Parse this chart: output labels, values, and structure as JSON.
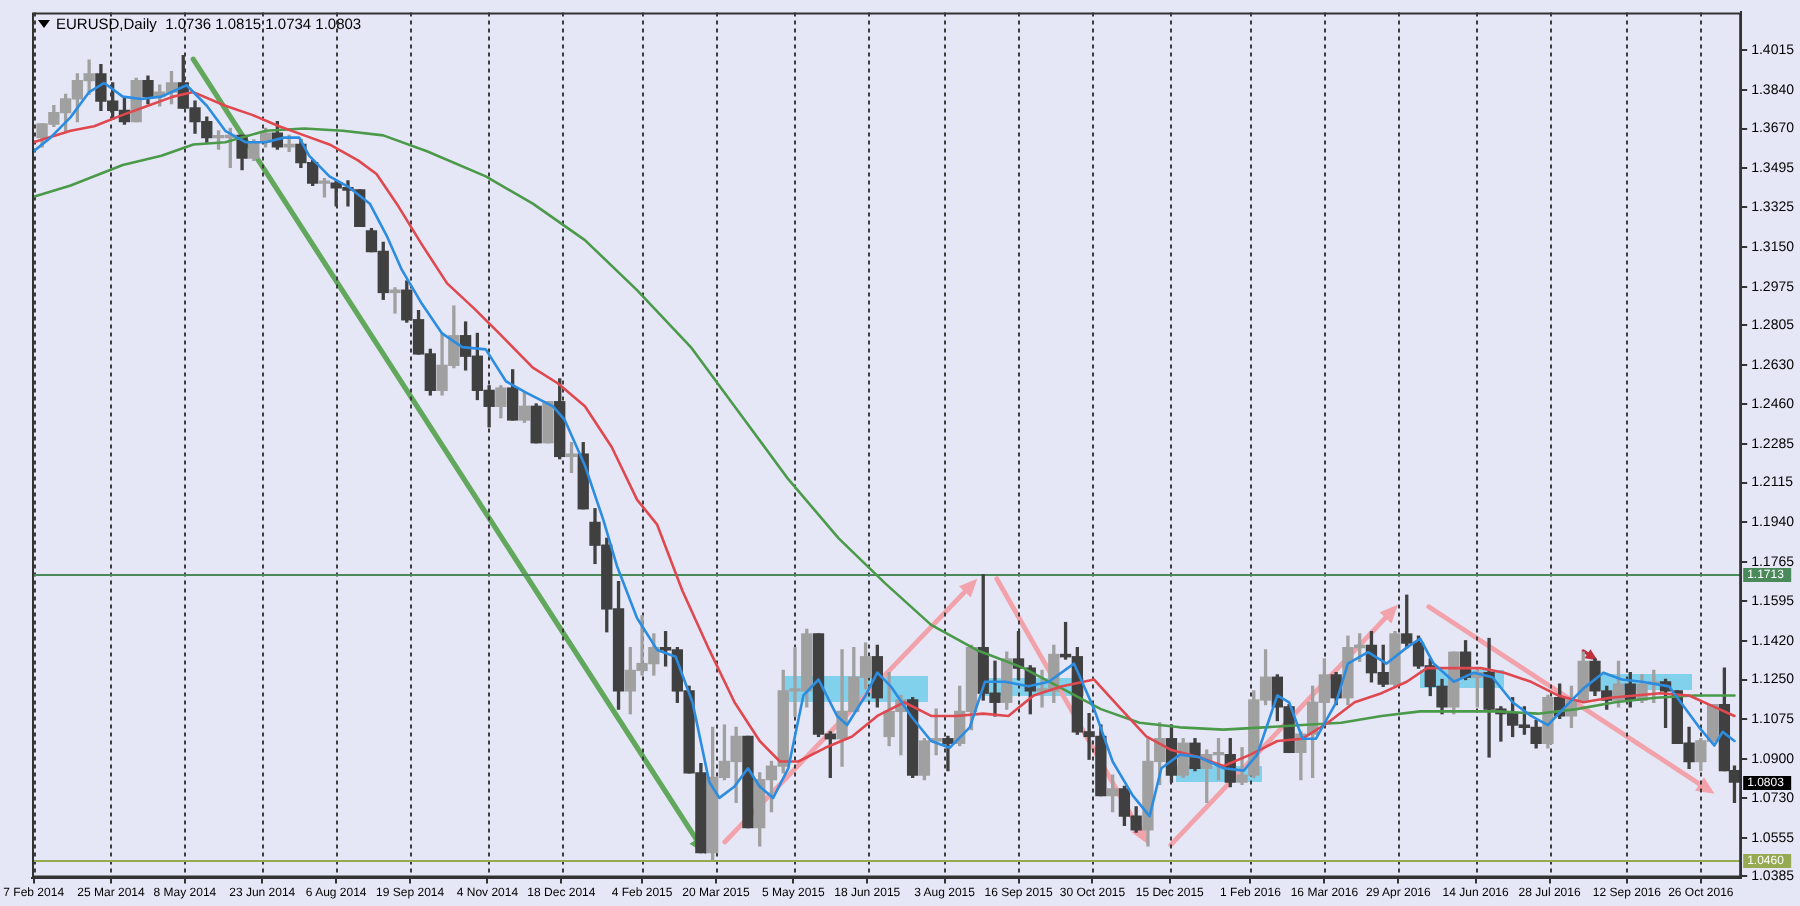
{
  "chart_data": {
    "type": "candlestick",
    "title": "EURUSD,Daily  1.0736 1.0815 1.0734 1.0803",
    "x": [
      "2014-02-12",
      "2014-02-19",
      "2014-02-26",
      "2014-03-05",
      "2014-03-12",
      "2014-03-19",
      "2014-03-26",
      "2014-04-02",
      "2014-04-09",
      "2014-04-16",
      "2014-04-23",
      "2014-04-30",
      "2014-05-07",
      "2014-05-14",
      "2014-05-21",
      "2014-05-28",
      "2014-06-04",
      "2014-06-11",
      "2014-06-18",
      "2014-06-25",
      "2014-07-02",
      "2014-07-09",
      "2014-07-16",
      "2014-07-23",
      "2014-07-30",
      "2014-08-06",
      "2014-08-13",
      "2014-08-20",
      "2014-08-27",
      "2014-09-03",
      "2014-09-10",
      "2014-09-17",
      "2014-09-24",
      "2014-10-01",
      "2014-10-08",
      "2014-10-15",
      "2014-10-22",
      "2014-10-29",
      "2014-11-05",
      "2014-11-12",
      "2014-11-19",
      "2014-11-26",
      "2014-12-03",
      "2014-12-10",
      "2014-12-17",
      "2014-12-24",
      "2014-12-31",
      "2015-01-07",
      "2015-01-14",
      "2015-01-21",
      "2015-01-28",
      "2015-02-04",
      "2015-02-11",
      "2015-02-18",
      "2015-02-25",
      "2015-03-04",
      "2015-03-11",
      "2015-03-18",
      "2015-03-25",
      "2015-04-01",
      "2015-04-08",
      "2015-04-15",
      "2015-04-22",
      "2015-04-29",
      "2015-05-06",
      "2015-05-13",
      "2015-05-20",
      "2015-05-27",
      "2015-06-03",
      "2015-06-10",
      "2015-06-17",
      "2015-06-24",
      "2015-07-01",
      "2015-07-08",
      "2015-07-15",
      "2015-07-22",
      "2015-07-29",
      "2015-08-05",
      "2015-08-12",
      "2015-08-19",
      "2015-08-26",
      "2015-09-02",
      "2015-09-09",
      "2015-09-16",
      "2015-09-23",
      "2015-09-30",
      "2015-10-07",
      "2015-10-14",
      "2015-10-21",
      "2015-10-28",
      "2015-11-04",
      "2015-11-11",
      "2015-11-18",
      "2015-11-25",
      "2015-12-02",
      "2015-12-09",
      "2015-12-16",
      "2015-12-23",
      "2015-12-30",
      "2016-01-06",
      "2016-01-13",
      "2016-01-20",
      "2016-01-27",
      "2016-02-03",
      "2016-02-10",
      "2016-02-17",
      "2016-02-24",
      "2016-03-02",
      "2016-03-09",
      "2016-03-16",
      "2016-03-23",
      "2016-03-30",
      "2016-04-06",
      "2016-04-13",
      "2016-04-20",
      "2016-04-27",
      "2016-05-04",
      "2016-05-11",
      "2016-05-18",
      "2016-05-25",
      "2016-06-01",
      "2016-06-08",
      "2016-06-15",
      "2016-06-22",
      "2016-06-29",
      "2016-07-06",
      "2016-07-13",
      "2016-07-20",
      "2016-07-27",
      "2016-08-03",
      "2016-08-10",
      "2016-08-17",
      "2016-08-24",
      "2016-08-31",
      "2016-09-07",
      "2016-09-14",
      "2016-09-21",
      "2016-09-28",
      "2016-10-05",
      "2016-10-12",
      "2016-10-19",
      "2016-10-26",
      "2016-11-02",
      "2016-11-09",
      "2016-11-15"
    ],
    "ohlc": [
      [
        1.363,
        1.369,
        1.359,
        1.369
      ],
      [
        1.369,
        1.377,
        1.368,
        1.374
      ],
      [
        1.374,
        1.382,
        1.366,
        1.38
      ],
      [
        1.38,
        1.391,
        1.37,
        1.388
      ],
      [
        1.388,
        1.397,
        1.382,
        1.391
      ],
      [
        1.391,
        1.395,
        1.375,
        1.379
      ],
      [
        1.379,
        1.387,
        1.371,
        1.375
      ],
      [
        1.375,
        1.381,
        1.369,
        1.37
      ],
      [
        1.37,
        1.389,
        1.37,
        1.388
      ],
      [
        1.388,
        1.39,
        1.378,
        1.381
      ],
      [
        1.381,
        1.386,
        1.377,
        1.383
      ],
      [
        1.383,
        1.392,
        1.378,
        1.387
      ],
      [
        1.387,
        1.399,
        1.376,
        1.376
      ],
      [
        1.376,
        1.379,
        1.365,
        1.37
      ],
      [
        1.37,
        1.372,
        1.361,
        1.363
      ],
      [
        1.363,
        1.366,
        1.358,
        1.363
      ],
      [
        1.363,
        1.367,
        1.35,
        1.364
      ],
      [
        1.364,
        1.364,
        1.349,
        1.354
      ],
      [
        1.354,
        1.362,
        1.353,
        1.361
      ],
      [
        1.361,
        1.367,
        1.359,
        1.365
      ],
      [
        1.365,
        1.37,
        1.358,
        1.359
      ],
      [
        1.359,
        1.364,
        1.357,
        1.36
      ],
      [
        1.36,
        1.362,
        1.35,
        1.352
      ],
      [
        1.352,
        1.353,
        1.342,
        1.343
      ],
      [
        1.343,
        1.345,
        1.337,
        1.343
      ],
      [
        1.343,
        1.344,
        1.333,
        1.341
      ],
      [
        1.341,
        1.344,
        1.333,
        1.34
      ],
      [
        1.34,
        1.34,
        1.324,
        1.324
      ],
      [
        1.322,
        1.323,
        1.313,
        1.313
      ],
      [
        1.313,
        1.317,
        1.292,
        1.295
      ],
      [
        1.295,
        1.297,
        1.286,
        1.296
      ],
      [
        1.296,
        1.3,
        1.282,
        1.283
      ],
      [
        1.283,
        1.287,
        1.268,
        1.268
      ],
      [
        1.268,
        1.27,
        1.25,
        1.252
      ],
      [
        1.252,
        1.277,
        1.25,
        1.263
      ],
      [
        1.263,
        1.289,
        1.262,
        1.276
      ],
      [
        1.276,
        1.282,
        1.261,
        1.267
      ],
      [
        1.267,
        1.277,
        1.248,
        1.252
      ],
      [
        1.252,
        1.254,
        1.236,
        1.245
      ],
      [
        1.245,
        1.254,
        1.24,
        1.253
      ],
      [
        1.253,
        1.261,
        1.239,
        1.239
      ],
      [
        1.239,
        1.251,
        1.238,
        1.245
      ],
      [
        1.245,
        1.246,
        1.229,
        1.229
      ],
      [
        1.229,
        1.247,
        1.229,
        1.247
      ],
      [
        1.247,
        1.257,
        1.222,
        1.223
      ],
      [
        1.223,
        1.229,
        1.216,
        1.224
      ],
      [
        1.224,
        1.229,
        1.2,
        1.2
      ],
      [
        1.194,
        1.2,
        1.176,
        1.184
      ],
      [
        1.184,
        1.187,
        1.146,
        1.156
      ],
      [
        1.156,
        1.168,
        1.112,
        1.12
      ],
      [
        1.12,
        1.139,
        1.11,
        1.129
      ],
      [
        1.129,
        1.153,
        1.127,
        1.132
      ],
      [
        1.132,
        1.145,
        1.127,
        1.139
      ],
      [
        1.139,
        1.146,
        1.131,
        1.138
      ],
      [
        1.138,
        1.139,
        1.115,
        1.12
      ],
      [
        1.12,
        1.122,
        1.084,
        1.084
      ],
      [
        1.084,
        1.088,
        1.049,
        1.049
      ],
      [
        1.049,
        1.104,
        1.046,
        1.082
      ],
      [
        1.082,
        1.105,
        1.081,
        1.089
      ],
      [
        1.089,
        1.104,
        1.071,
        1.1
      ],
      [
        1.1,
        1.1,
        1.06,
        1.06
      ],
      [
        1.06,
        1.084,
        1.052,
        1.081
      ],
      [
        1.081,
        1.089,
        1.067,
        1.087
      ],
      [
        1.087,
        1.129,
        1.084,
        1.12
      ],
      [
        1.12,
        1.139,
        1.109,
        1.12
      ],
      [
        1.12,
        1.147,
        1.113,
        1.145
      ],
      [
        1.145,
        1.145,
        1.1,
        1.101
      ],
      [
        1.101,
        1.102,
        1.082,
        1.099
      ],
      [
        1.099,
        1.138,
        1.087,
        1.111
      ],
      [
        1.111,
        1.139,
        1.111,
        1.126
      ],
      [
        1.126,
        1.141,
        1.121,
        1.135
      ],
      [
        1.135,
        1.14,
        1.113,
        1.117
      ],
      [
        1.1,
        1.128,
        1.096,
        1.111
      ],
      [
        1.111,
        1.118,
        1.092,
        1.116
      ],
      [
        1.116,
        1.117,
        1.082,
        1.083
      ],
      [
        1.083,
        1.099,
        1.081,
        1.098
      ],
      [
        1.098,
        1.112,
        1.092,
        1.099
      ],
      [
        1.099,
        1.1,
        1.085,
        1.097
      ],
      [
        1.097,
        1.122,
        1.096,
        1.111
      ],
      [
        1.111,
        1.14,
        1.103,
        1.139
      ],
      [
        1.139,
        1.171,
        1.116,
        1.119
      ],
      [
        1.119,
        1.133,
        1.109,
        1.115
      ],
      [
        1.115,
        1.137,
        1.112,
        1.134
      ],
      [
        1.134,
        1.146,
        1.125,
        1.13
      ],
      [
        1.13,
        1.131,
        1.11,
        1.12
      ],
      [
        1.12,
        1.129,
        1.113,
        1.12
      ],
      [
        1.12,
        1.14,
        1.115,
        1.136
      ],
      [
        1.136,
        1.15,
        1.134,
        1.135
      ],
      [
        1.135,
        1.139,
        1.101,
        1.102
      ],
      [
        1.102,
        1.11,
        1.09,
        1.1
      ],
      [
        1.1,
        1.105,
        1.074,
        1.074
      ],
      [
        1.074,
        1.083,
        1.067,
        1.077
      ],
      [
        1.077,
        1.078,
        1.061,
        1.065
      ],
      [
        1.065,
        1.069,
        1.058,
        1.059
      ],
      [
        1.059,
        1.099,
        1.052,
        1.089
      ],
      [
        1.089,
        1.106,
        1.079,
        1.099
      ],
      [
        1.099,
        1.105,
        1.08,
        1.083
      ],
      [
        1.083,
        1.099,
        1.082,
        1.097
      ],
      [
        1.097,
        1.099,
        1.085,
        1.086
      ],
      [
        1.086,
        1.094,
        1.071,
        1.092
      ],
      [
        1.092,
        1.099,
        1.081,
        1.092
      ],
      [
        1.092,
        1.099,
        1.078,
        1.08
      ],
      [
        1.08,
        1.095,
        1.079,
        1.083
      ],
      [
        1.083,
        1.12,
        1.082,
        1.116
      ],
      [
        1.116,
        1.138,
        1.114,
        1.126
      ],
      [
        1.126,
        1.127,
        1.107,
        1.113
      ],
      [
        1.113,
        1.114,
        1.093,
        1.093
      ],
      [
        1.093,
        1.102,
        1.081,
        1.101
      ],
      [
        1.101,
        1.122,
        1.082,
        1.115
      ],
      [
        1.115,
        1.134,
        1.105,
        1.127
      ],
      [
        1.127,
        1.128,
        1.114,
        1.117
      ],
      [
        1.117,
        1.144,
        1.114,
        1.139
      ],
      [
        1.139,
        1.145,
        1.133,
        1.14
      ],
      [
        1.14,
        1.146,
        1.124,
        1.128
      ],
      [
        1.128,
        1.14,
        1.122,
        1.123
      ],
      [
        1.123,
        1.146,
        1.122,
        1.145
      ],
      [
        1.145,
        1.162,
        1.139,
        1.141
      ],
      [
        1.141,
        1.144,
        1.13,
        1.131
      ],
      [
        1.131,
        1.134,
        1.118,
        1.122
      ],
      [
        1.122,
        1.125,
        1.11,
        1.113
      ],
      [
        1.113,
        1.137,
        1.11,
        1.137
      ],
      [
        1.137,
        1.142,
        1.125,
        1.126
      ],
      [
        1.126,
        1.13,
        1.113,
        1.128
      ],
      [
        1.128,
        1.143,
        1.091,
        1.112
      ],
      [
        1.112,
        1.113,
        1.098,
        1.11
      ],
      [
        1.11,
        1.117,
        1.1,
        1.105
      ],
      [
        1.105,
        1.113,
        1.101,
        1.104
      ],
      [
        1.104,
        1.107,
        1.095,
        1.097
      ],
      [
        1.097,
        1.118,
        1.095,
        1.117
      ],
      [
        1.117,
        1.123,
        1.108,
        1.109
      ],
      [
        1.109,
        1.122,
        1.104,
        1.116
      ],
      [
        1.116,
        1.137,
        1.116,
        1.133
      ],
      [
        1.133,
        1.134,
        1.118,
        1.12
      ],
      [
        1.12,
        1.122,
        1.112,
        1.116
      ],
      [
        1.116,
        1.133,
        1.113,
        1.123
      ],
      [
        1.123,
        1.128,
        1.113,
        1.116
      ],
      [
        1.116,
        1.127,
        1.115,
        1.123
      ],
      [
        1.123,
        1.129,
        1.115,
        1.124
      ],
      [
        1.124,
        1.125,
        1.104,
        1.12
      ],
      [
        1.12,
        1.12,
        1.097,
        1.097
      ],
      [
        1.097,
        1.104,
        1.086,
        1.089
      ],
      [
        1.089,
        1.099,
        1.085,
        1.098
      ],
      [
        1.098,
        1.114,
        1.097,
        1.114
      ],
      [
        1.114,
        1.13,
        1.085,
        1.085
      ],
      [
        1.085,
        1.087,
        1.071,
        1.08
      ]
    ],
    "colors": [
      "#a0a0a0",
      "#a0a0a0",
      "#a0a0a0",
      "#a0a0a0",
      "#a0a0a0",
      "#404040",
      "#404040",
      "#404040",
      "#a0a0a0",
      "#404040",
      "#a0a0a0",
      "#a0a0a0",
      "#404040",
      "#404040",
      "#404040",
      "#a0a0a0",
      "#a0a0a0",
      "#404040",
      "#a0a0a0",
      "#a0a0a0",
      "#404040",
      "#a0a0a0",
      "#404040",
      "#404040",
      "#a0a0a0",
      "#404040",
      "#404040",
      "#404040",
      "#404040",
      "#404040",
      "#a0a0a0",
      "#404040",
      "#404040",
      "#404040",
      "#a0a0a0",
      "#a0a0a0",
      "#404040",
      "#404040",
      "#404040",
      "#a0a0a0",
      "#404040",
      "#a0a0a0",
      "#404040",
      "#a0a0a0",
      "#404040",
      "#a0a0a0",
      "#404040",
      "#404040",
      "#404040",
      "#404040",
      "#a0a0a0",
      "#a0a0a0",
      "#a0a0a0",
      "#404040",
      "#404040",
      "#404040",
      "#404040",
      "#a0a0a0",
      "#a0a0a0",
      "#a0a0a0",
      "#404040",
      "#a0a0a0",
      "#a0a0a0",
      "#a0a0a0",
      "#a0a0a0",
      "#a0a0a0",
      "#404040",
      "#404040",
      "#a0a0a0",
      "#a0a0a0",
      "#a0a0a0",
      "#404040",
      "#a0a0a0",
      "#a0a0a0",
      "#404040",
      "#a0a0a0",
      "#a0a0a0",
      "#404040",
      "#a0a0a0",
      "#a0a0a0",
      "#404040",
      "#404040",
      "#a0a0a0",
      "#404040",
      "#404040",
      "#a0a0a0",
      "#a0a0a0",
      "#404040",
      "#404040",
      "#404040",
      "#404040",
      "#a0a0a0",
      "#404040",
      "#404040",
      "#a0a0a0",
      "#a0a0a0",
      "#404040",
      "#a0a0a0",
      "#404040",
      "#a0a0a0",
      "#a0a0a0",
      "#404040",
      "#a0a0a0",
      "#a0a0a0",
      "#a0a0a0",
      "#404040",
      "#404040",
      "#a0a0a0",
      "#a0a0a0",
      "#a0a0a0",
      "#404040",
      "#a0a0a0",
      "#a0a0a0",
      "#404040",
      "#404040",
      "#a0a0a0",
      "#404040",
      "#404040",
      "#404040",
      "#404040",
      "#a0a0a0",
      "#404040",
      "#a0a0a0",
      "#404040",
      "#404040",
      "#404040",
      "#404040",
      "#404040",
      "#a0a0a0",
      "#404040",
      "#a0a0a0",
      "#a0a0a0",
      "#404040",
      "#404040",
      "#a0a0a0",
      "#404040",
      "#a0a0a0",
      "#a0a0a0",
      "#404040",
      "#404040",
      "#404040",
      "#a0a0a0",
      "#a0a0a0",
      "#404040",
      "#404040"
    ],
    "series": [
      {
        "type": "line",
        "color": "#2b8ce0",
        "x": [
          "2014-02-07",
          "2014-02-17",
          "2014-03-01",
          "2014-03-12",
          "2014-03-21",
          "2014-04-01",
          "2014-04-12",
          "2014-04-24",
          "2014-05-09",
          "2014-05-21",
          "2014-06-01",
          "2014-06-13",
          "2014-06-25",
          "2014-07-06",
          "2014-07-15",
          "2014-07-21",
          "2014-08-02",
          "2014-08-14",
          "2014-08-26",
          "2014-09-05",
          "2014-09-14",
          "2014-09-26",
          "2014-10-08",
          "2014-10-20",
          "2014-11-03",
          "2014-11-15",
          "2014-11-27",
          "2014-12-13",
          "2014-12-20",
          "2015-01-01",
          "2015-01-12",
          "2015-01-20",
          "2015-02-01",
          "2015-02-13",
          "2015-02-24",
          "2015-03-06",
          "2015-03-16",
          "2015-03-22",
          "2015-03-31",
          "2015-04-08",
          "2015-04-15",
          "2015-04-23",
          "2015-05-02",
          "2015-05-11",
          "2015-05-20",
          "2015-05-31",
          "2015-06-06",
          "2015-06-17",
          "2015-06-24",
          "2015-07-02",
          "2015-07-14",
          "2015-07-26",
          "2015-08-06",
          "2015-08-18",
          "2015-08-27",
          "2015-09-08",
          "2015-09-22",
          "2015-10-04",
          "2015-10-19",
          "2015-10-31",
          "2015-11-11",
          "2015-11-23",
          "2015-12-03",
          "2015-12-10",
          "2015-12-21",
          "2016-01-01",
          "2016-01-16",
          "2016-01-28",
          "2016-02-05",
          "2016-02-17",
          "2016-02-24",
          "2016-03-03",
          "2016-03-11",
          "2016-03-23",
          "2016-03-30",
          "2016-04-11",
          "2016-04-22",
          "2016-05-04",
          "2016-05-12",
          "2016-05-20",
          "2016-06-01",
          "2016-06-13",
          "2016-06-24",
          "2016-07-06",
          "2016-07-17",
          "2016-07-27",
          "2016-08-05",
          "2016-08-17",
          "2016-08-29",
          "2016-09-09",
          "2016-09-21",
          "2016-10-07",
          "2016-10-14",
          "2016-10-25",
          "2016-11-03",
          "2016-11-08",
          "2016-11-15"
        ],
        "values": [
          1.357,
          1.363,
          1.372,
          1.383,
          1.387,
          1.381,
          1.38,
          1.381,
          1.386,
          1.377,
          1.366,
          1.361,
          1.361,
          1.363,
          1.363,
          1.355,
          1.346,
          1.341,
          1.334,
          1.32,
          1.305,
          1.29,
          1.277,
          1.271,
          1.27,
          1.256,
          1.251,
          1.245,
          1.239,
          1.219,
          1.195,
          1.175,
          1.152,
          1.138,
          1.135,
          1.115,
          1.08,
          1.073,
          1.078,
          1.086,
          1.078,
          1.073,
          1.086,
          1.118,
          1.125,
          1.109,
          1.105,
          1.118,
          1.128,
          1.122,
          1.109,
          1.098,
          1.095,
          1.104,
          1.124,
          1.124,
          1.122,
          1.124,
          1.132,
          1.112,
          1.089,
          1.074,
          1.065,
          1.086,
          1.092,
          1.091,
          1.086,
          1.085,
          1.092,
          1.118,
          1.115,
          1.099,
          1.099,
          1.115,
          1.132,
          1.137,
          1.132,
          1.139,
          1.143,
          1.132,
          1.124,
          1.128,
          1.126,
          1.115,
          1.109,
          1.105,
          1.112,
          1.121,
          1.128,
          1.125,
          1.124,
          1.122,
          1.115,
          1.104,
          1.096,
          1.102,
          1.098
        ]
      },
      {
        "type": "line",
        "color": "#e0484f",
        "x": [
          "2014-02-07",
          "2014-03-01",
          "2014-03-15",
          "2014-04-01",
          "2014-04-16",
          "2014-05-01",
          "2014-05-13",
          "2014-06-01",
          "2014-06-17",
          "2014-07-03",
          "2014-07-18",
          "2014-08-02",
          "2014-08-19",
          "2014-08-30",
          "2014-09-11",
          "2014-09-26",
          "2014-10-11",
          "2014-10-27",
          "2014-11-11",
          "2014-12-01",
          "2014-12-16",
          "2015-01-01",
          "2015-01-17",
          "2015-02-01",
          "2015-02-13",
          "2015-02-28",
          "2015-03-16",
          "2015-03-31",
          "2015-04-15",
          "2015-04-27",
          "2015-05-08",
          "2015-05-24",
          "2015-06-09",
          "2015-06-24",
          "2015-07-10",
          "2015-07-26",
          "2015-08-10",
          "2015-08-26",
          "2015-09-10",
          "2015-09-25",
          "2015-10-12",
          "2015-10-31",
          "2015-11-16",
          "2015-12-01",
          "2015-12-16",
          "2016-01-01",
          "2016-01-16",
          "2016-02-01",
          "2016-02-17",
          "2016-03-03",
          "2016-03-18",
          "2016-04-03",
          "2016-04-19",
          "2016-05-04",
          "2016-05-16",
          "2016-06-01",
          "2016-06-17",
          "2016-07-01",
          "2016-07-17",
          "2016-08-02",
          "2016-08-17",
          "2016-09-02",
          "2016-09-17",
          "2016-10-02",
          "2016-10-19",
          "2016-11-03",
          "2016-11-15"
        ],
        "values": [
          1.361,
          1.366,
          1.368,
          1.373,
          1.377,
          1.381,
          1.383,
          1.377,
          1.373,
          1.368,
          1.364,
          1.36,
          1.353,
          1.347,
          1.334,
          1.316,
          1.299,
          1.288,
          1.277,
          1.262,
          1.255,
          1.245,
          1.227,
          1.204,
          1.193,
          1.164,
          1.138,
          1.115,
          1.098,
          1.089,
          1.089,
          1.095,
          1.1,
          1.109,
          1.115,
          1.109,
          1.109,
          1.11,
          1.109,
          1.118,
          1.122,
          1.125,
          1.112,
          1.1,
          1.094,
          1.091,
          1.087,
          1.092,
          1.098,
          1.099,
          1.106,
          1.115,
          1.119,
          1.124,
          1.13,
          1.13,
          1.13,
          1.128,
          1.124,
          1.118,
          1.115,
          1.117,
          1.118,
          1.119,
          1.118,
          1.113,
          1.109
        ]
      },
      {
        "type": "line",
        "color": "#4a9a4a",
        "x": [
          "2014-02-07",
          "2014-03-01",
          "2014-04-01",
          "2014-04-24",
          "2014-05-13",
          "2014-06-01",
          "2014-06-25",
          "2014-07-18",
          "2014-08-10",
          "2014-09-03",
          "2014-09-29",
          "2014-11-03",
          "2014-12-01",
          "2015-01-01",
          "2015-02-01",
          "2015-03-05",
          "2015-03-31",
          "2015-05-02",
          "2015-06-01",
          "2015-06-29",
          "2015-07-26",
          "2015-08-22",
          "2015-09-19",
          "2015-10-12",
          "2015-11-04",
          "2015-11-27",
          "2015-12-21",
          "2016-01-16",
          "2016-02-09",
          "2016-03-03",
          "2016-03-26",
          "2016-04-19",
          "2016-05-12",
          "2016-06-04",
          "2016-06-27",
          "2016-07-21",
          "2016-08-13",
          "2016-09-05",
          "2016-09-29",
          "2016-10-22",
          "2016-11-15"
        ],
        "values": [
          1.337,
          1.342,
          1.351,
          1.355,
          1.36,
          1.361,
          1.366,
          1.367,
          1.366,
          1.364,
          1.357,
          1.346,
          1.334,
          1.318,
          1.296,
          1.271,
          1.245,
          1.213,
          1.187,
          1.167,
          1.149,
          1.138,
          1.13,
          1.121,
          1.112,
          1.106,
          1.104,
          1.103,
          1.104,
          1.105,
          1.106,
          1.109,
          1.111,
          1.111,
          1.111,
          1.11,
          1.112,
          1.115,
          1.117,
          1.118,
          1.118
        ]
      }
    ],
    "xlim": [
      "2014-02-06",
      "2016-11-19"
    ],
    "xticks": [
      {
        "value": "2014-02-07",
        "label": "7 Feb 2014"
      },
      {
        "value": "2014-03-25",
        "label": "25 Mar 2014"
      },
      {
        "value": "2014-05-08",
        "label": "8 May 2014"
      },
      {
        "value": "2014-06-23",
        "label": "23 Jun 2014"
      },
      {
        "value": "2014-08-06",
        "label": "6 Aug 2014"
      },
      {
        "value": "2014-09-19",
        "label": "19 Sep 2014"
      },
      {
        "value": "2014-11-04",
        "label": "4 Nov 2014"
      },
      {
        "value": "2014-12-18",
        "label": "18 Dec 2014"
      },
      {
        "value": "2015-02-04",
        "label": "4 Feb 2015"
      },
      {
        "value": "2015-03-20",
        "label": "20 Mar 2015"
      },
      {
        "value": "2015-05-05",
        "label": "5 May 2015"
      },
      {
        "value": "2015-06-18",
        "label": "18 Jun 2015"
      },
      {
        "value": "2015-08-03",
        "label": "3 Aug 2015"
      },
      {
        "value": "2015-09-16",
        "label": "16 Sep 2015"
      },
      {
        "value": "2015-10-30",
        "label": "30 Oct 2015"
      },
      {
        "value": "2015-12-15",
        "label": "15 Dec 2015"
      },
      {
        "value": "2016-02-01",
        "label": "1 Feb 2016"
      },
      {
        "value": "2016-03-16",
        "label": "16 Mar 2016"
      },
      {
        "value": "2016-04-29",
        "label": "29 Apr 2016"
      },
      {
        "value": "2016-06-14",
        "label": "14 Jun 2016"
      },
      {
        "value": "2016-07-28",
        "label": "28 Jul 2016"
      },
      {
        "value": "2016-09-12",
        "label": "12 Sep 2016"
      },
      {
        "value": "2016-10-26",
        "label": "26 Oct 2016"
      }
    ],
    "ylim": [
      1.038,
      1.418
    ],
    "yticks": [
      1.4015,
      {
        "value": 1.384,
        "label": "1.3840"
      },
      {
        "value": 1.367,
        "label": "1.3670"
      },
      1.3495,
      1.3325,
      {
        "value": 1.315,
        "label": "1.3150"
      },
      1.2975,
      1.2805,
      {
        "value": 1.263,
        "label": "1.2630"
      },
      {
        "value": 1.246,
        "label": "1.2460"
      },
      1.2285,
      1.2115,
      {
        "value": 1.194,
        "label": "1.1940"
      },
      1.1765,
      1.1595,
      {
        "value": 1.142,
        "label": "1.1420"
      },
      {
        "value": 1.125,
        "label": "1.1250"
      },
      1.1075,
      {
        "value": 1.09,
        "label": "1.0900"
      },
      {
        "value": 1.073,
        "label": "1.0730"
      },
      1.0555,
      1.0385
    ],
    "grid": "x",
    "ref_lines": [
      {
        "axis": "y",
        "value": 1.1713,
        "label": "1.1713",
        "color": "#4a8a5a"
      },
      {
        "axis": "y",
        "value": 1.046,
        "label": "1.0460",
        "color": "#96aa52"
      }
    ],
    "annotations": [
      {
        "text": "1.0803",
        "x": "2016-11-15",
        "y": 1.0803
      }
    ]
  }
}
